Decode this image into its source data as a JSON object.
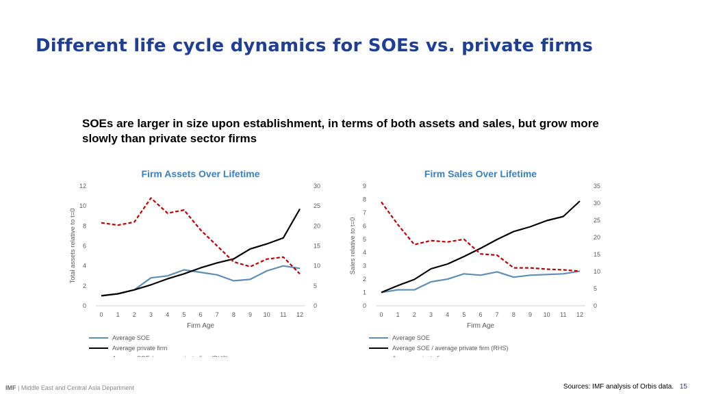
{
  "slide": {
    "title": "Different life cycle dynamics for SOEs vs. private firms",
    "subtitle": "SOEs are larger in size upon establishment, in terms of both assets and sales, but grow more slowly than private sector firms",
    "footer_brand": "IMF",
    "footer_department": "| Middle East and Central Asia Department",
    "footer_source": "Sources: IMF analysis of Orbis data.",
    "page_number": "15"
  },
  "colors": {
    "soe": "#5b8db8",
    "private": "#000000",
    "ratio": "#c00000",
    "title": "#3a7fc0",
    "axis": "#d0d0d0"
  },
  "chart_data": [
    {
      "type": "line",
      "title": "Firm Assets Over Lifetime",
      "xlabel": "Firm Age",
      "ylabel": "Total assets relative to t=0",
      "x": [
        0,
        1,
        2,
        3,
        4,
        5,
        6,
        7,
        8,
        9,
        10,
        11,
        12
      ],
      "ylim": [
        0,
        12
      ],
      "yticks": [
        0,
        2,
        4,
        6,
        8,
        10,
        12
      ],
      "y2lim": [
        0,
        30
      ],
      "y2ticks": [
        0,
        5,
        10,
        15,
        20,
        25,
        30
      ],
      "series": [
        {
          "name": "Average SOE",
          "axis": "left",
          "style": "soe",
          "values": [
            1.0,
            1.2,
            1.6,
            2.8,
            3.0,
            3.6,
            3.35,
            3.1,
            2.5,
            2.65,
            3.5,
            4.0,
            3.75
          ]
        },
        {
          "name": "Average private firm",
          "axis": "left",
          "style": "private",
          "values": [
            1.0,
            1.2,
            1.6,
            2.1,
            2.7,
            3.2,
            3.8,
            4.3,
            4.7,
            5.7,
            6.2,
            6.8,
            9.7
          ]
        },
        {
          "name": "Average SOE / average private firm (RHS)",
          "axis": "right",
          "style": "ratio",
          "values": [
            20.8,
            20.2,
            21.0,
            27.0,
            23.2,
            24.0,
            19.0,
            15.0,
            11.0,
            9.8,
            11.7,
            12.2,
            8.0
          ]
        }
      ]
    },
    {
      "type": "line",
      "title": "Firm Sales Over Lifetime",
      "xlabel": "Firm Age",
      "ylabel": "Sales relative to t=0",
      "x": [
        0,
        1,
        2,
        3,
        4,
        5,
        6,
        7,
        8,
        9,
        10,
        11,
        12
      ],
      "ylim": [
        0,
        9
      ],
      "yticks": [
        0,
        1,
        2,
        3,
        4,
        5,
        6,
        7,
        8,
        9
      ],
      "y2lim": [
        0,
        35
      ],
      "y2ticks": [
        0,
        5,
        10,
        15,
        20,
        25,
        30,
        35
      ],
      "series": [
        {
          "name": "Average SOE",
          "axis": "left",
          "style": "soe",
          "values": [
            1.0,
            1.2,
            1.2,
            1.8,
            2.0,
            2.4,
            2.3,
            2.55,
            2.15,
            2.3,
            2.35,
            2.4,
            2.6
          ]
        },
        {
          "name": "Average SOE / average private firm (RHS)",
          "axis": "right",
          "style": "private",
          "values": [
            3.9,
            5.9,
            7.7,
            10.8,
            12.2,
            14.4,
            16.8,
            19.4,
            21.7,
            23.1,
            24.9,
            26.1,
            30.6
          ]
        },
        {
          "name": "Average private firm",
          "axis": "left",
          "style": "ratio",
          "values": [
            7.8,
            6.1,
            4.6,
            4.9,
            4.8,
            5.0,
            3.9,
            3.8,
            2.85,
            2.85,
            2.75,
            2.7,
            2.6
          ]
        }
      ]
    }
  ]
}
